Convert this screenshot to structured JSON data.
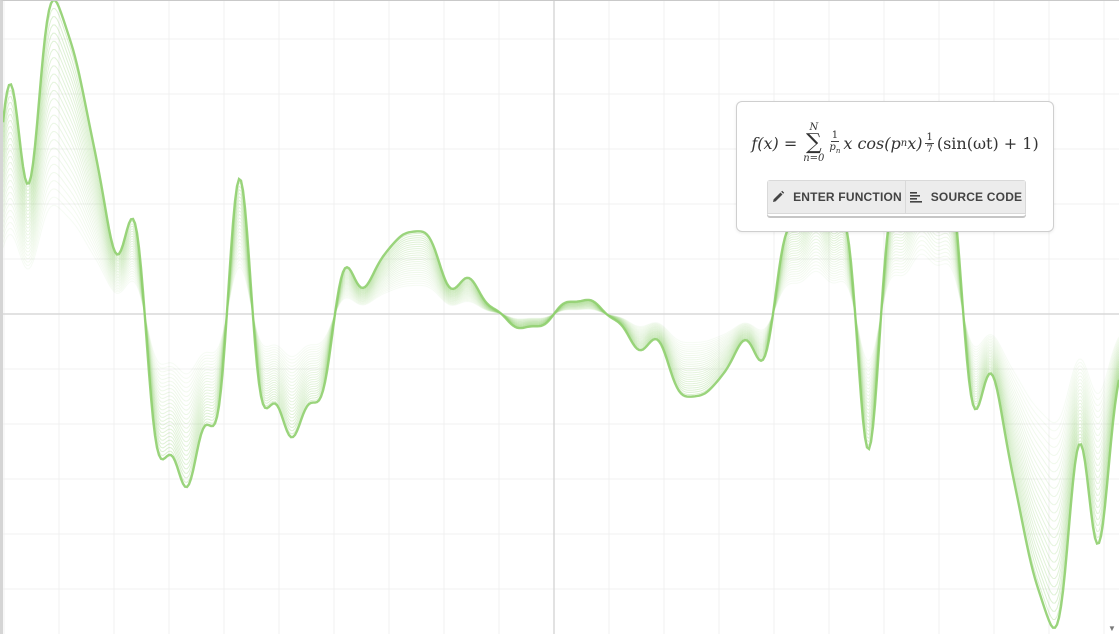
{
  "graph": {
    "line_color": "#8fcf6e",
    "axis_color": "#d8d8d8",
    "grid_color": "#f0f0f0"
  },
  "formula": {
    "lhs": "f(x) =",
    "sum_upper": "N",
    "sum_lower": "n=0",
    "frac1_num": "1",
    "frac1_den": "p",
    "frac1_den_sub": "n",
    "body": "x cos(p",
    "body_sub": "n",
    "body_end": "x)",
    "frac2_num": "1",
    "frac2_den": "7",
    "tail": "(sin(ωt) + 1)"
  },
  "buttons": {
    "enter_function": "ENTER FUNCTION",
    "source_code": "SOURCE CODE"
  }
}
